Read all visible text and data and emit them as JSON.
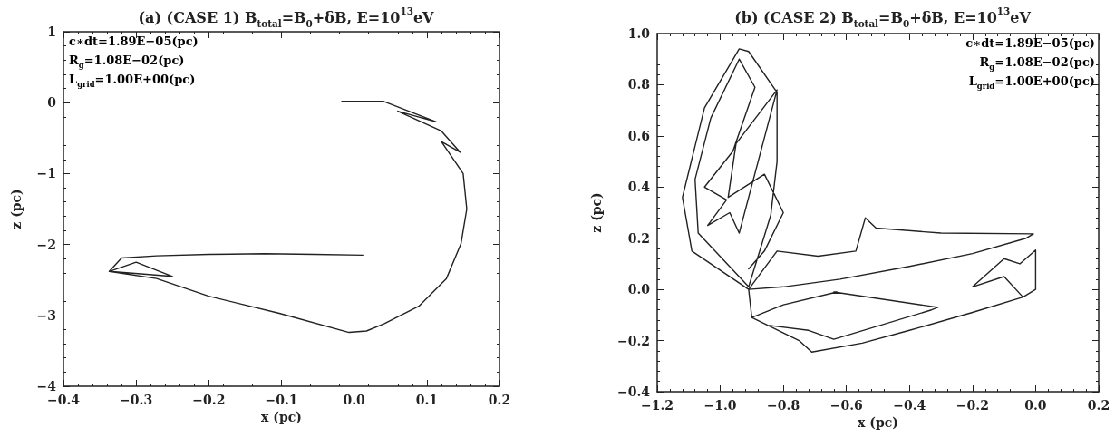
{
  "chart_data": [
    {
      "type": "line",
      "title": "(a) (CASE 1) B$_{total}$=B$_{0}$+δB, E=10$^{13}$eV",
      "xlabel": "x (pc)",
      "ylabel": "z (pc)",
      "annotations": [
        "c∗dt=1.89E−05(pc)",
        "R$_{g}$=1.08E−02(pc)",
        "L$_{grid}$=1.00E+00(pc)"
      ],
      "xlim": [
        -0.4,
        0.2
      ],
      "xticks": [
        {
          "value": -0.4,
          "label": "−0.4"
        },
        {
          "value": -0.3,
          "label": "−0.3"
        },
        {
          "value": -0.2,
          "label": "−0.2"
        },
        {
          "value": -0.1,
          "label": "−0.1"
        },
        {
          "value": 0,
          "label": "0.0"
        },
        {
          "value": 0.1,
          "label": "0.1"
        },
        {
          "value": 0.2,
          "label": "0.2"
        }
      ],
      "ylim": [
        -4,
        1
      ],
      "yticks": [
        {
          "value": -4,
          "label": "−4"
        },
        {
          "value": -3,
          "label": "−3"
        },
        {
          "value": -2,
          "label": "−2"
        },
        {
          "value": -1,
          "label": "−1"
        },
        0,
        1
      ],
      "grid": false,
      "marker": "none",
      "line_style": "solid",
      "series": [
        {
          "color": "#222222",
          "x": [
            -0.017,
            0.04,
            0.113,
            0.06,
            0.12,
            0.146,
            0.12,
            0.15,
            0.155,
            0.147,
            0.127,
            0.089,
            0.041,
            0.017,
            -0.007,
            -0.103,
            -0.2,
            -0.272,
            -0.337,
            -0.25,
            -0.3,
            -0.337,
            -0.32,
            -0.272,
            -0.2,
            -0.123,
            -0.055,
            0.012
          ],
          "values": [
            0.02,
            0.02,
            -0.27,
            -0.12,
            -0.4,
            -0.7,
            -0.55,
            -1.0,
            -1.5,
            -1.99,
            -2.48,
            -2.87,
            -3.12,
            -3.22,
            -3.24,
            -2.97,
            -2.73,
            -2.48,
            -2.38,
            -2.45,
            -2.25,
            -2.38,
            -2.19,
            -2.16,
            -2.14,
            -2.13,
            -2.14,
            -2.15
          ]
        }
      ]
    },
    {
      "type": "line",
      "title": "(b) (CASE 2) B$_{total}$=B$_{0}$+δB, E=10$^{13}$eV",
      "xlabel": "x (pc)",
      "ylabel": "z (pc)",
      "annotations": [
        "c∗dt=1.89E−05(pc)",
        "R$_{g}$=1.08E−02(pc)",
        "L$_{grid}$=1.00E+00(pc)"
      ],
      "xlim": [
        -1.2,
        0.2
      ],
      "xticks": [
        {
          "value": -1.2,
          "label": "−1.2"
        },
        {
          "value": -1.0,
          "label": "−1.0"
        },
        {
          "value": -0.8,
          "label": "−0.8"
        },
        {
          "value": -0.6,
          "label": "−0.6"
        },
        {
          "value": -0.4,
          "label": "−0.4"
        },
        {
          "value": -0.2,
          "label": "−0.2"
        },
        {
          "value": 0,
          "label": "0.0"
        },
        {
          "value": 0.2,
          "label": "0.2"
        }
      ],
      "ylim": [
        -0.4,
        1.0
      ],
      "yticks": [
        {
          "value": -0.4,
          "label": "−0.4"
        },
        {
          "value": -0.2,
          "label": "−0.2"
        },
        {
          "value": 0,
          "label": "0.0"
        },
        {
          "value": 0.2,
          "label": "0.2"
        },
        {
          "value": 0.4,
          "label": "0.4"
        },
        {
          "value": 0.6,
          "label": "0.6"
        },
        {
          "value": 0.8,
          "label": "0.8"
        },
        {
          "value": 1.0,
          "label": "1.0"
        }
      ],
      "grid": false,
      "marker": "none",
      "line_style": "solid",
      "series": [
        {
          "color": "#222222",
          "x": [
            0.0,
            0.0,
            -0.05,
            -0.1,
            -0.2,
            -0.1,
            -0.04,
            0.0,
            -0.04,
            -0.2,
            -0.4,
            -0.55,
            -0.71,
            -0.75,
            -0.9,
            -0.8,
            -0.63,
            -0.64,
            -0.31,
            -0.33,
            -0.64,
            -0.72,
            -0.85,
            -0.9,
            -0.91,
            -0.8,
            -0.62,
            -0.4,
            -0.2,
            -0.03,
            -0.007,
            -0.3,
            -0.506,
            -0.54,
            -0.57,
            -0.69,
            -0.82,
            -0.91,
            -1.09,
            -1.12,
            -1.05,
            -0.94,
            -0.91,
            -0.82,
            -0.82,
            -0.84,
            -0.91,
            -1.07,
            -1.08,
            -1.03,
            -0.94,
            -0.89,
            -0.96,
            -1.05,
            -0.98,
            -1.04,
            -0.97,
            -0.94,
            -0.82,
            -0.95,
            -0.975,
            -0.86,
            -0.8,
            -0.86,
            -0.91
          ],
          "values": [
            0.0,
            0.154,
            0.1,
            0.12,
            0.01,
            0.05,
            -0.03,
            0.0,
            -0.03,
            -0.09,
            -0.16,
            -0.21,
            -0.245,
            -0.2,
            -0.11,
            -0.06,
            -0.01,
            -0.01,
            -0.07,
            -0.08,
            -0.195,
            -0.16,
            -0.14,
            -0.11,
            0.0,
            0.01,
            0.04,
            0.09,
            0.14,
            0.2,
            0.217,
            0.22,
            0.24,
            0.28,
            0.15,
            0.13,
            0.15,
            0.0,
            0.15,
            0.36,
            0.71,
            0.94,
            0.93,
            0.77,
            0.5,
            0.29,
            0.01,
            0.22,
            0.43,
            0.67,
            0.9,
            0.79,
            0.54,
            0.4,
            0.35,
            0.25,
            0.3,
            0.22,
            0.78,
            0.57,
            0.36,
            0.45,
            0.3,
            0.15,
            0.08
          ]
        }
      ]
    }
  ]
}
